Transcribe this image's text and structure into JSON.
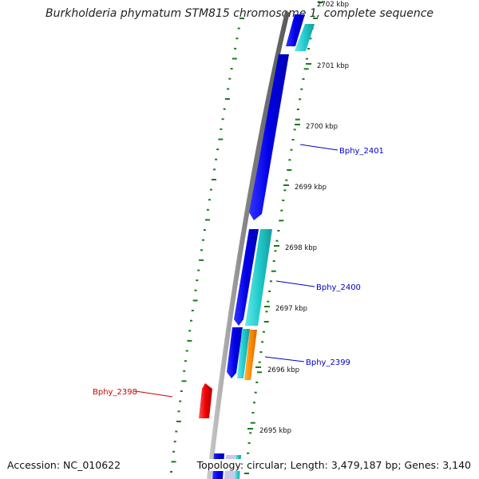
{
  "header": {
    "title": "Burkholderia phymatum STM815 chromosome 1, complete sequence"
  },
  "footer": {
    "accession": "Accession: NC_010622",
    "summary": "Topology: circular; Length: 3,479,187 bp; Genes: 3,140"
  },
  "colors": {
    "backbone": "#888888",
    "tick": "#1a7a1a",
    "forward_gene": "#0000ee",
    "forward_cds": "#22cccc",
    "reverse_gene": "#ee0000",
    "label_forward": "#0000cc",
    "label_reverse": "#cc0000",
    "orange_feature": "#ff8c00"
  },
  "scale_ticks": [
    {
      "label": "2702 kbp"
    },
    {
      "label": "2701 kbp"
    },
    {
      "label": "2700 kbp"
    },
    {
      "label": "2699 kbp"
    },
    {
      "label": "2698 kbp"
    },
    {
      "label": "2697 kbp"
    },
    {
      "label": "2696 kbp"
    },
    {
      "label": "2695 kbp"
    }
  ],
  "gene_labels": [
    {
      "name": "Bphy_2401",
      "strand": "forward"
    },
    {
      "name": "Bphy_2400",
      "strand": "forward"
    },
    {
      "name": "Bphy_2399",
      "strand": "forward"
    },
    {
      "name": "Bphy_2398",
      "strand": "reverse"
    }
  ]
}
